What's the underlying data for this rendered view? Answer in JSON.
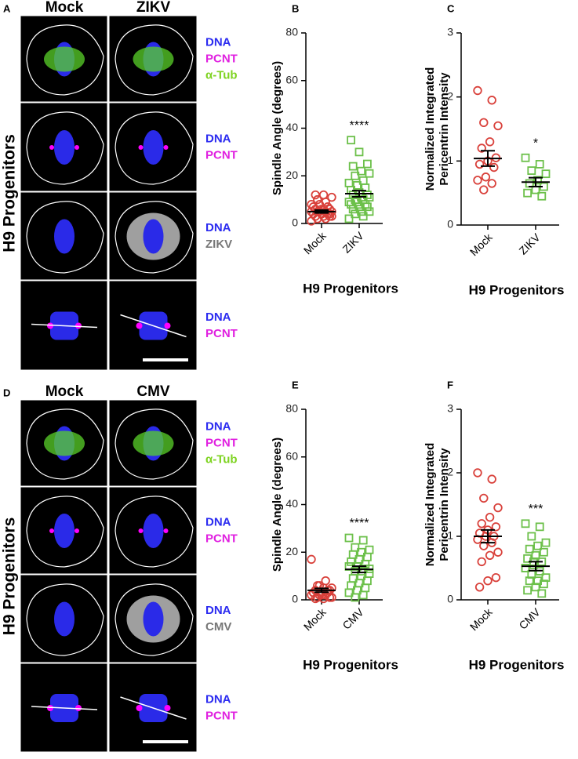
{
  "figures": [
    {
      "panel_label": "A",
      "columns": [
        "Mock",
        "ZIKV"
      ],
      "side_label": "H9 Progenitors",
      "rows": [
        [
          {
            "label": "DNA",
            "color": "#2b2bf0"
          },
          {
            "label": "PCNT",
            "color": "#e020e0"
          },
          {
            "label": "α-Tub",
            "color": "#7ed321"
          }
        ],
        [
          {
            "label": "DNA",
            "color": "#2b2bf0"
          },
          {
            "label": "PCNT",
            "color": "#e020e0"
          }
        ],
        [
          {
            "label": "DNA",
            "color": "#2b2bf0"
          },
          {
            "label": "ZIKV",
            "color": "#777777"
          }
        ],
        [
          {
            "label": "DNA",
            "color": "#2b2bf0"
          },
          {
            "label": "PCNT",
            "color": "#e020e0"
          }
        ]
      ]
    },
    {
      "panel_label": "D",
      "columns": [
        "Mock",
        "CMV"
      ],
      "side_label": "H9 Progenitors",
      "rows": [
        [
          {
            "label": "DNA",
            "color": "#2b2bf0"
          },
          {
            "label": "PCNT",
            "color": "#e020e0"
          },
          {
            "label": "α-Tub",
            "color": "#7ed321"
          }
        ],
        [
          {
            "label": "DNA",
            "color": "#2b2bf0"
          },
          {
            "label": "PCNT",
            "color": "#e020e0"
          }
        ],
        [
          {
            "label": "DNA",
            "color": "#2b2bf0"
          },
          {
            "label": "CMV",
            "color": "#777777"
          }
        ],
        [
          {
            "label": "DNA",
            "color": "#2b2bf0"
          },
          {
            "label": "PCNT",
            "color": "#e020e0"
          }
        ]
      ]
    }
  ],
  "chart_data": [
    {
      "type": "dot",
      "panel_label": "B",
      "ylabel": "Spindle Angle (degrees)",
      "xlabel": "H9 Progenitors",
      "ylim": [
        0,
        80
      ],
      "yticks": [
        0,
        20,
        40,
        60,
        80
      ],
      "groups": [
        {
          "name": "Mock",
          "color": "#d9413b",
          "marker": "circle",
          "mean": 5,
          "sem": 0.6,
          "values": [
            1,
            2,
            2,
            3,
            3,
            3,
            4,
            4,
            4,
            4,
            5,
            5,
            5,
            5,
            5,
            6,
            6,
            6,
            6,
            7,
            7,
            8,
            8,
            9,
            10,
            11,
            12,
            12,
            3,
            4
          ]
        },
        {
          "name": "ZIKV",
          "color": "#6cc04a",
          "marker": "square",
          "mean": 12.5,
          "sem": 1.3,
          "significance": "****",
          "values": [
            2,
            3,
            4,
            5,
            5,
            6,
            7,
            7,
            8,
            8,
            9,
            9,
            10,
            10,
            11,
            11,
            12,
            12,
            13,
            14,
            15,
            16,
            17,
            18,
            20,
            21,
            22,
            24,
            25,
            30,
            35
          ]
        }
      ]
    },
    {
      "type": "dot",
      "panel_label": "C",
      "ylabel": "Normalized Integrated\nPericentrin Intensity",
      "xlabel": "H9 Progenitors",
      "ylim": [
        0,
        3
      ],
      "yticks": [
        0,
        1,
        2,
        3
      ],
      "groups": [
        {
          "name": "Mock",
          "color": "#d9413b",
          "marker": "circle",
          "mean": 1.04,
          "sem": 0.12,
          "values": [
            2.1,
            1.95,
            1.6,
            1.55,
            1.3,
            1.2,
            1.05,
            1.0,
            0.95,
            0.9,
            0.75,
            0.7,
            0.65,
            0.55
          ]
        },
        {
          "name": "ZIKV",
          "color": "#6cc04a",
          "marker": "square",
          "mean": 0.67,
          "sem": 0.07,
          "significance": "*",
          "values": [
            1.05,
            0.95,
            0.85,
            0.8,
            0.7,
            0.65,
            0.6,
            0.55,
            0.5,
            0.45
          ]
        }
      ]
    },
    {
      "type": "dot",
      "panel_label": "E",
      "ylabel": "Spindle Angle (degrees)",
      "xlabel": "H9 Progenitors",
      "ylim": [
        0,
        80
      ],
      "yticks": [
        0,
        20,
        40,
        60,
        80
      ],
      "groups": [
        {
          "name": "Mock",
          "color": "#d9413b",
          "marker": "circle",
          "mean": 4,
          "sem": 0.8,
          "values": [
            17,
            8,
            6,
            5,
            5,
            4,
            4,
            3,
            3,
            3,
            2,
            2,
            2,
            1,
            1,
            0.5,
            0.5,
            1,
            2,
            3,
            4,
            6
          ]
        },
        {
          "name": "CMV",
          "color": "#6cc04a",
          "marker": "square",
          "mean": 12.8,
          "sem": 1.3,
          "significance": "****",
          "values": [
            26,
            25,
            22,
            21,
            20,
            19,
            18,
            17,
            16,
            15,
            14,
            14,
            13,
            12,
            11,
            10,
            9,
            8,
            7,
            6,
            5,
            4,
            3,
            2,
            1,
            13,
            12
          ]
        }
      ]
    },
    {
      "type": "dot",
      "panel_label": "F",
      "ylabel": "Normalized Integrated\nPericentrin Intensity",
      "xlabel": "H9 Progenitors",
      "ylim": [
        0,
        3
      ],
      "yticks": [
        0,
        1,
        2,
        3
      ],
      "groups": [
        {
          "name": "Mock",
          "color": "#d9413b",
          "marker": "circle",
          "mean": 1.0,
          "sem": 0.1,
          "values": [
            2.0,
            1.9,
            1.6,
            1.45,
            1.3,
            1.2,
            1.15,
            1.1,
            1.05,
            1.0,
            1.0,
            0.95,
            0.9,
            0.85,
            0.75,
            0.7,
            0.6,
            0.35,
            0.3,
            0.2
          ]
        },
        {
          "name": "CMV",
          "color": "#6cc04a",
          "marker": "square",
          "mean": 0.53,
          "sem": 0.07,
          "significance": "***",
          "values": [
            1.2,
            1.15,
            1.0,
            0.9,
            0.85,
            0.8,
            0.75,
            0.7,
            0.65,
            0.6,
            0.55,
            0.5,
            0.45,
            0.4,
            0.35,
            0.3,
            0.3,
            0.25,
            0.2,
            0.15,
            0.1,
            0.6,
            0.5,
            0.45
          ]
        }
      ]
    }
  ]
}
